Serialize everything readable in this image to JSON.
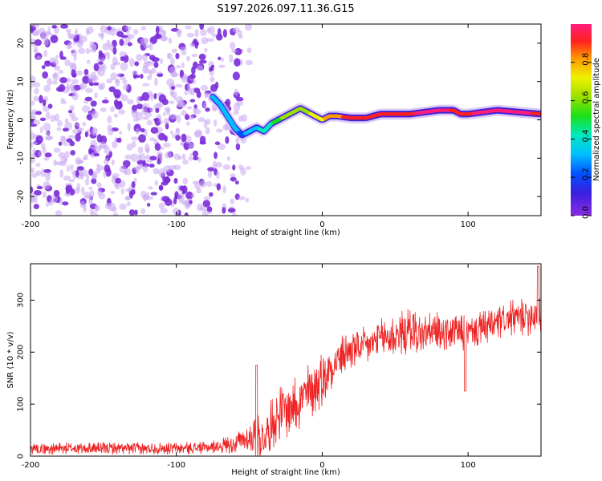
{
  "figure_title": "S197.2026.097.11.36.G15",
  "colors": {
    "snr_line": "#ee2222",
    "blob_purple": "#7b2cd9"
  },
  "chart_data": [
    {
      "type": "heatmap",
      "title": "S197.2026.097.11.36.G15",
      "xlabel": "Height of straight line (km)",
      "ylabel": "Frequency (Hz)",
      "xlim": [
        -200,
        150
      ],
      "ylim": [
        -25,
        25
      ],
      "x_tick_labels": [
        "-200",
        "-100",
        "0",
        "100"
      ],
      "y_tick_labels": [
        "-20",
        "-10",
        "0",
        "10",
        "20"
      ],
      "colorbar": {
        "label": "Normalized spectral amplitude",
        "range": [
          0,
          1
        ],
        "tick_labels": [
          "0.0",
          "0.2",
          "0.4",
          "0.6",
          "0.8"
        ],
        "colormap": "rainbow (violet-blue-cyan-green-yellow-orange-red-magenta)"
      },
      "noise_region_x": [
        -200,
        -50
      ],
      "signal_track": {
        "x": [
          -75,
          -70,
          -65,
          -60,
          -55,
          -50,
          -45,
          -40,
          -35,
          -30,
          -25,
          -20,
          -15,
          -10,
          -5,
          0,
          5,
          10,
          20,
          30,
          40,
          60,
          80,
          90,
          95,
          100,
          120,
          150
        ],
        "freq": [
          6,
          4,
          1,
          -2,
          -4,
          -3,
          -2,
          -3,
          -1,
          0,
          1,
          2,
          3,
          2,
          1,
          0,
          1,
          1,
          0.5,
          0.5,
          1.5,
          1.5,
          2.5,
          2.5,
          1.5,
          1.5,
          2.5,
          1.5
        ],
        "amp": [
          0.3,
          0.25,
          0.3,
          0.25,
          0.2,
          0.25,
          0.3,
          0.35,
          0.4,
          0.5,
          0.55,
          0.6,
          0.55,
          0.6,
          0.65,
          0.7,
          0.75,
          0.8,
          0.85,
          0.9,
          0.9,
          0.9,
          0.95,
          0.9,
          0.9,
          0.9,
          0.95,
          0.9
        ]
      }
    },
    {
      "type": "line",
      "xlabel": "Height of straight line (km)",
      "ylabel": "SNR (10 * v/v)",
      "xlim": [
        -200,
        150
      ],
      "ylim": [
        0,
        370
      ],
      "x_tick_labels": [
        "-200",
        "-100",
        "0",
        "100"
      ],
      "y_tick_labels": [
        "0",
        "100",
        "200",
        "300"
      ],
      "series": [
        {
          "name": "SNR",
          "x": [
            -200,
            -150,
            -100,
            -80,
            -70,
            -60,
            -50,
            -45,
            -40,
            -35,
            -30,
            -20,
            -10,
            0,
            10,
            20,
            30,
            40,
            50,
            60,
            70,
            80,
            90,
            100,
            110,
            120,
            130,
            140,
            150
          ],
          "mean": [
            15,
            15,
            15,
            16,
            20,
            25,
            35,
            40,
            30,
            60,
            80,
            100,
            120,
            150,
            185,
            205,
            210,
            225,
            232,
            240,
            235,
            238,
            240,
            235,
            245,
            255,
            265,
            270,
            280
          ],
          "spread": [
            12,
            12,
            12,
            12,
            15,
            20,
            30,
            60,
            35,
            50,
            55,
            60,
            60,
            55,
            45,
            40,
            40,
            40,
            45,
            50,
            40,
            40,
            40,
            35,
            35,
            35,
            35,
            40,
            45
          ]
        }
      ],
      "annotations": [
        {
          "x": -45,
          "y": 175,
          "note": "spike near -45 km"
        },
        {
          "x": 98,
          "y": 125,
          "note": "dip near 100 km"
        },
        {
          "x": 148,
          "y": 365,
          "note": "peak near 148 km"
        }
      ]
    }
  ]
}
